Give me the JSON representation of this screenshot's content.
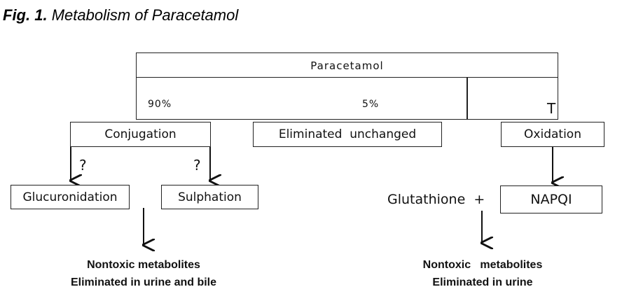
{
  "caption": {
    "label": "Fig. 1.",
    "title": "Metabolism of Paracetamol"
  },
  "top_box": {
    "title": "Paracetamol",
    "pct_conjugation": "90%",
    "pct_oxidation": "5%",
    "mark": "T"
  },
  "nodes": {
    "conjugation": "Conjugation",
    "eliminated_unchanged": "Eliminated  unchanged",
    "oxidation": "Oxidation",
    "glucuronidation": "Glucuronidation",
    "sulphation": "Sulphation",
    "glutathione": "Glutathione  +",
    "napqi": "NAPQI"
  },
  "question_marks": [
    "?",
    "?"
  ],
  "outcomes": {
    "left_line1": "Nontoxic metabolites",
    "left_line2": "Eliminated in urine and bile",
    "right_line1": "Nontoxic   metabolites",
    "right_line2": "Eliminated in urine"
  }
}
